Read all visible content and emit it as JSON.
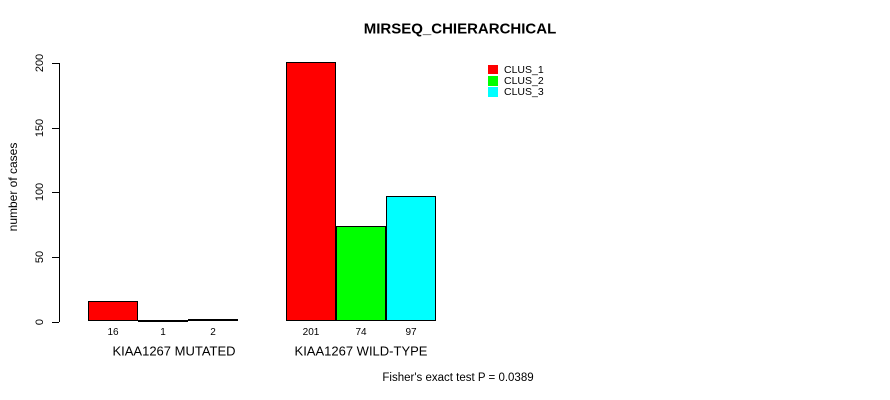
{
  "title": "MIRSEQ_CHIERARCHICAL",
  "chart_data": {
    "type": "bar",
    "title": "MIRSEQ_CHIERARCHICAL",
    "xlabel": "",
    "ylabel": "number of cases",
    "categories": [
      "KIAA1267 MUTATED",
      "KIAA1267 WILD-TYPE"
    ],
    "series": [
      {
        "name": "CLUS_1",
        "color": "#ff0000",
        "values": [
          16,
          201
        ]
      },
      {
        "name": "CLUS_2",
        "color": "#00ff00",
        "values": [
          1,
          74
        ]
      },
      {
        "name": "CLUS_3",
        "color": "#00ffff",
        "values": [
          2,
          97
        ]
      }
    ],
    "yticks": [
      0,
      50,
      100,
      150,
      200
    ],
    "ylim": [
      0,
      209
    ],
    "grid": false,
    "legend_position": "top-right",
    "bar_value_labels": [
      [
        "16",
        "1",
        "2"
      ],
      [
        "201",
        "74",
        "97"
      ]
    ],
    "annotation": "Fisher's exact test P = 0.0389"
  }
}
